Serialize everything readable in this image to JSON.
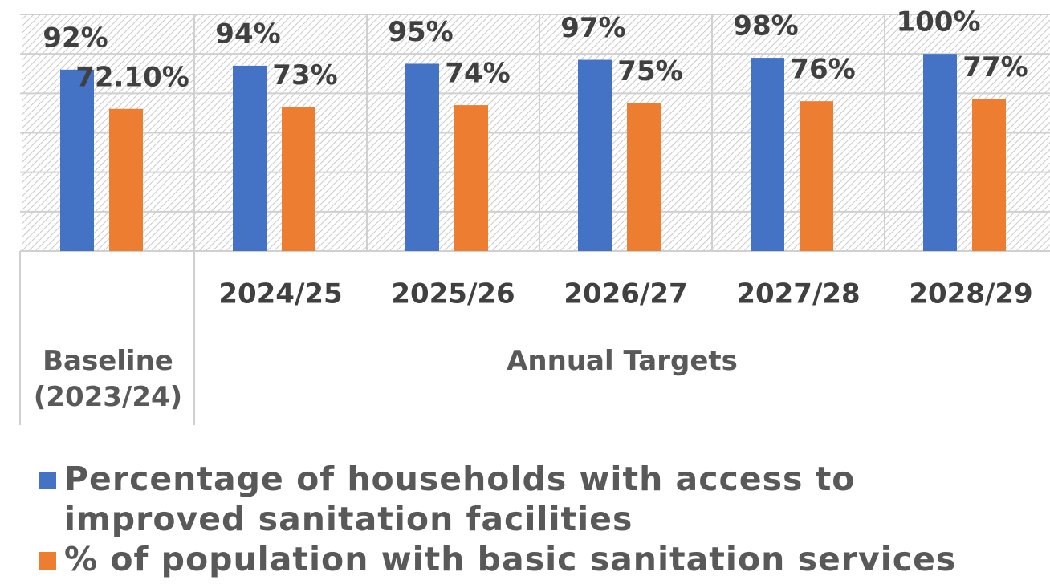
{
  "chart_data": {
    "type": "bar",
    "categories": [
      null,
      "2024/25",
      "2025/26",
      "2026/27",
      "2027/28",
      "2028/29"
    ],
    "category_groups": [
      {
        "label": "Baseline (2023/24)",
        "size": 1
      },
      {
        "label": "Annual Targets",
        "size": 5
      }
    ],
    "series": [
      {
        "name": "Percentage of households with access to improved sanitation facilities",
        "color": "#4472c4",
        "values": [
          92,
          94,
          95,
          97,
          98,
          100
        ],
        "value_labels": [
          "92%",
          "94%",
          "95%",
          "97%",
          "98%",
          "100%"
        ]
      },
      {
        "name": "% of population with basic sanitation services",
        "color": "#ed7d31",
        "values": [
          72.1,
          73,
          74,
          75,
          76,
          77
        ],
        "value_labels": [
          "72.10%",
          "73%",
          "74%",
          "75%",
          "76%",
          "77%"
        ]
      }
    ],
    "ylim": [
      0,
      120
    ],
    "yticks": [
      0,
      20,
      40,
      60,
      80,
      100,
      120
    ],
    "grid": true,
    "legend": "bottom"
  }
}
